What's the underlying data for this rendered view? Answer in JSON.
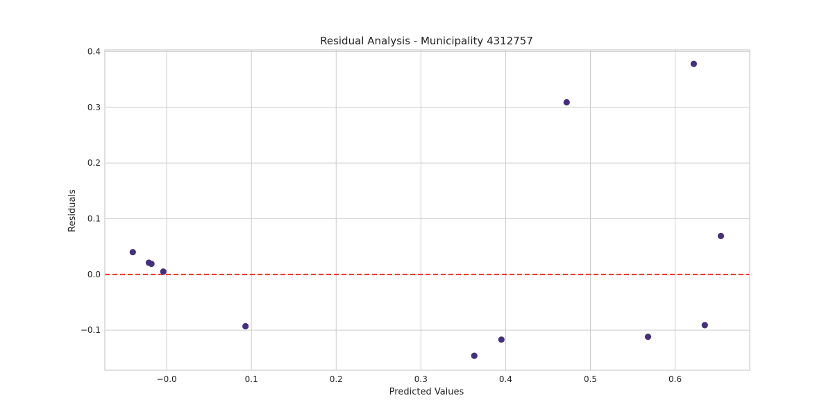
{
  "chart_data": {
    "type": "scatter",
    "title": "Residual Analysis - Municipality 4312757",
    "xlabel": "Predicted Values",
    "ylabel": "Residuals",
    "xlim": [
      -0.073,
      0.688
    ],
    "ylim": [
      -0.172,
      0.403
    ],
    "x_ticks": [
      0.0,
      0.1,
      0.2,
      0.3,
      0.4,
      0.5,
      0.6
    ],
    "x_tick_labels": [
      "−0.0",
      "0.1",
      "0.2",
      "0.3",
      "0.4",
      "0.5",
      "0.6"
    ],
    "y_ticks": [
      -0.1,
      0.0,
      0.1,
      0.2,
      0.3,
      0.4
    ],
    "y_tick_labels": [
      "−0.1",
      "0.0",
      "0.1",
      "0.2",
      "0.3",
      "0.4"
    ],
    "grid": true,
    "reference_line": {
      "y": 0.0,
      "style": "dashed",
      "color": "#e8261c"
    },
    "marker_color": "#45307f",
    "points": [
      {
        "x": -0.04,
        "y": 0.04
      },
      {
        "x": -0.021,
        "y": 0.021
      },
      {
        "x": -0.018,
        "y": 0.019
      },
      {
        "x": -0.004,
        "y": 0.005
      },
      {
        "x": 0.093,
        "y": -0.093
      },
      {
        "x": 0.363,
        "y": -0.146
      },
      {
        "x": 0.395,
        "y": -0.117
      },
      {
        "x": 0.472,
        "y": 0.309
      },
      {
        "x": 0.568,
        "y": -0.112
      },
      {
        "x": 0.622,
        "y": 0.378
      },
      {
        "x": 0.635,
        "y": -0.091
      },
      {
        "x": 0.654,
        "y": 0.069
      }
    ]
  }
}
